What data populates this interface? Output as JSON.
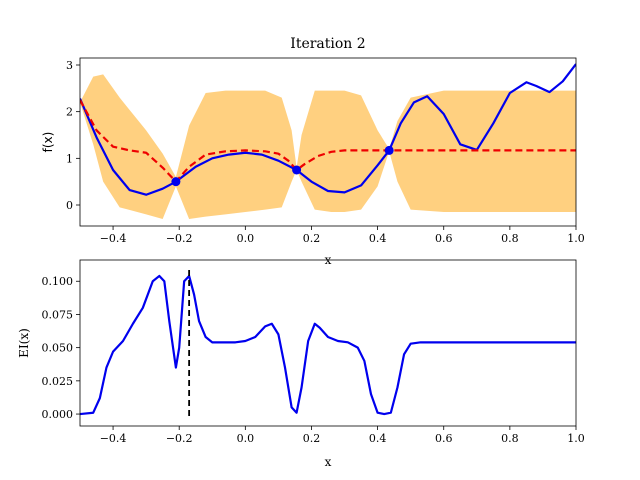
{
  "chart_data": [
    {
      "type": "line",
      "title": "Iteration 2",
      "xlabel": "x",
      "ylabel": "f(x)",
      "xlim": [
        -0.5,
        1.0
      ],
      "ylim": [
        -0.45,
        3.15
      ],
      "x_ticks": [
        "−0.4",
        "−0.2",
        "0.0",
        "0.2",
        "0.4",
        "0.6",
        "0.8",
        "1.0"
      ],
      "y_ticks": [
        "0",
        "1",
        "2",
        "3"
      ],
      "x_tick_values": [
        -0.4,
        -0.2,
        0.0,
        0.2,
        0.4,
        0.6,
        0.8,
        1.0
      ],
      "y_tick_values": [
        0,
        1,
        2,
        3
      ],
      "colors": {
        "band": "#ffd080",
        "true_function": "#0000ee",
        "posterior_mean": "#ee0000",
        "observations": "#0000ee"
      },
      "confidence_band": {
        "x": [
          -0.5,
          -0.46,
          -0.43,
          -0.38,
          -0.3,
          -0.25,
          -0.21,
          -0.17,
          -0.12,
          -0.06,
          0.0,
          0.06,
          0.11,
          0.14,
          0.155,
          0.17,
          0.21,
          0.26,
          0.3,
          0.35,
          0.4,
          0.435,
          0.46,
          0.5,
          0.6,
          0.7,
          0.8,
          0.9,
          1.0
        ],
        "upper": [
          2.2,
          2.75,
          2.8,
          2.3,
          1.6,
          1.1,
          0.6,
          1.7,
          2.4,
          2.45,
          2.45,
          2.45,
          2.3,
          1.6,
          0.8,
          1.5,
          2.45,
          2.45,
          2.45,
          2.35,
          1.6,
          1.2,
          1.8,
          2.3,
          2.45,
          2.45,
          2.45,
          2.45,
          2.45
        ],
        "lower": [
          2.2,
          1.3,
          0.5,
          -0.05,
          -0.2,
          -0.3,
          0.4,
          -0.3,
          -0.25,
          -0.2,
          -0.15,
          -0.1,
          -0.05,
          0.5,
          0.75,
          0.5,
          -0.1,
          -0.15,
          -0.15,
          -0.1,
          0.4,
          1.15,
          0.5,
          -0.1,
          -0.15,
          -0.15,
          -0.15,
          -0.15,
          -0.15
        ]
      },
      "series": [
        {
          "x": [
            -0.5,
            -0.45,
            -0.4,
            -0.35,
            -0.3,
            -0.25,
            -0.21,
            -0.15,
            -0.1,
            -0.05,
            0.0,
            0.05,
            0.1,
            0.155,
            0.2,
            0.25,
            0.3,
            0.35,
            0.4,
            0.435,
            0.47,
            0.51,
            0.55,
            0.6,
            0.65,
            0.7,
            0.75,
            0.8,
            0.85,
            0.88,
            0.92,
            0.96,
            1.0
          ],
          "y": [
            2.28,
            1.45,
            0.75,
            0.32,
            0.22,
            0.35,
            0.5,
            0.82,
            1.0,
            1.08,
            1.12,
            1.08,
            0.95,
            0.75,
            0.5,
            0.3,
            0.27,
            0.42,
            0.85,
            1.17,
            1.75,
            2.2,
            2.33,
            1.95,
            1.3,
            1.18,
            1.75,
            2.4,
            2.63,
            2.55,
            2.42,
            2.65,
            3.02
          ]
        },
        {
          "x": [
            -0.5,
            -0.45,
            -0.4,
            -0.35,
            -0.3,
            -0.25,
            -0.21,
            -0.17,
            -0.12,
            -0.06,
            0.0,
            0.06,
            0.1,
            0.13,
            0.155,
            0.18,
            0.22,
            0.26,
            0.3,
            0.35,
            0.4,
            0.435,
            1.0
          ],
          "y": [
            2.25,
            1.6,
            1.25,
            1.17,
            1.12,
            0.8,
            0.5,
            0.82,
            1.08,
            1.15,
            1.17,
            1.15,
            1.1,
            0.95,
            0.75,
            0.88,
            1.05,
            1.14,
            1.17,
            1.17,
            1.17,
            1.17,
            1.17
          ]
        }
      ],
      "observations": {
        "x": [
          -0.21,
          0.155,
          0.435
        ],
        "y": [
          0.5,
          0.75,
          1.17
        ]
      }
    },
    {
      "type": "line",
      "title": "",
      "xlabel": "x",
      "ylabel": "EI(x)",
      "xlim": [
        -0.5,
        1.0
      ],
      "ylim": [
        -0.009,
        0.116
      ],
      "x_ticks": [
        "−0.4",
        "−0.2",
        "0.0",
        "0.2",
        "0.4",
        "0.6",
        "0.8",
        "1.0"
      ],
      "y_ticks": [
        "0.000",
        "0.025",
        "0.050",
        "0.075",
        "0.100"
      ],
      "x_tick_values": [
        -0.4,
        -0.2,
        0.0,
        0.2,
        0.4,
        0.6,
        0.8,
        1.0
      ],
      "y_tick_values": [
        0.0,
        0.025,
        0.05,
        0.075,
        0.1
      ],
      "colors": {
        "ei": "#0000ee",
        "next_point": "#000000"
      },
      "series": [
        {
          "x": [
            -0.5,
            -0.46,
            -0.44,
            -0.42,
            -0.4,
            -0.37,
            -0.34,
            -0.31,
            -0.28,
            -0.26,
            -0.245,
            -0.23,
            -0.21,
            -0.2,
            -0.185,
            -0.17,
            -0.155,
            -0.14,
            -0.12,
            -0.1,
            -0.06,
            -0.03,
            0.0,
            0.03,
            0.06,
            0.08,
            0.1,
            0.12,
            0.14,
            0.155,
            0.17,
            0.19,
            0.21,
            0.225,
            0.25,
            0.28,
            0.31,
            0.34,
            0.36,
            0.38,
            0.4,
            0.42,
            0.44,
            0.46,
            0.48,
            0.5,
            0.53,
            0.56,
            0.6,
            0.7,
            0.8,
            0.9,
            1.0
          ],
          "y": [
            0.0,
            0.001,
            0.012,
            0.035,
            0.047,
            0.055,
            0.068,
            0.08,
            0.1,
            0.104,
            0.1,
            0.07,
            0.035,
            0.05,
            0.1,
            0.104,
            0.09,
            0.07,
            0.058,
            0.054,
            0.054,
            0.054,
            0.055,
            0.058,
            0.066,
            0.068,
            0.06,
            0.035,
            0.005,
            0.001,
            0.02,
            0.055,
            0.068,
            0.065,
            0.058,
            0.055,
            0.054,
            0.05,
            0.04,
            0.015,
            0.001,
            0.0,
            0.001,
            0.02,
            0.045,
            0.053,
            0.054,
            0.054,
            0.054,
            0.054,
            0.054,
            0.054,
            0.054
          ]
        }
      ],
      "next_point_x": -0.17
    }
  ]
}
